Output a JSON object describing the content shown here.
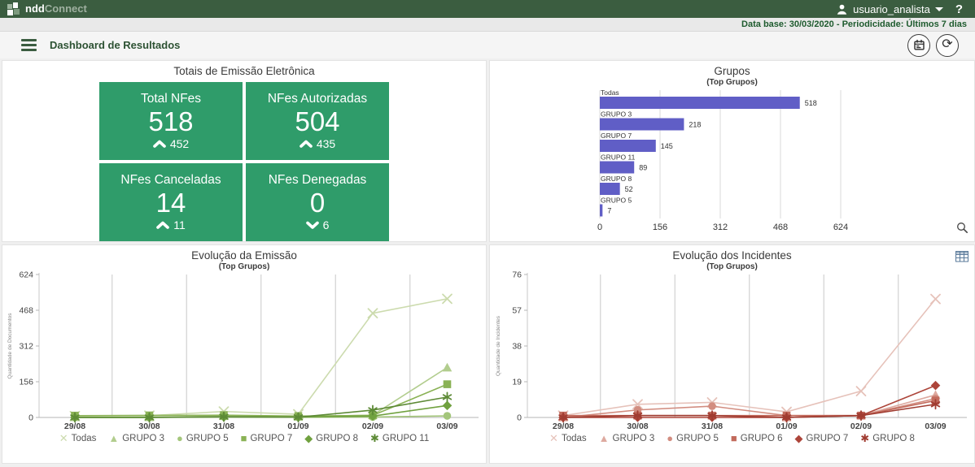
{
  "topbar": {
    "logo_bold": "ndd",
    "logo_light": "Connect",
    "username": "usuario_analista",
    "help_label": "?"
  },
  "infobar": {
    "text": "Data base: 30/03/2020 - Periodicidade: Últimos 7 dias"
  },
  "header": {
    "title": "Dashboard de Resultados"
  },
  "icons": {
    "menu": "hamburger",
    "user": "person-silhouette",
    "dropdown": "caret-down",
    "help": "question-mark",
    "calendar": "calendar",
    "refresh": "sync-circular-arrow",
    "zoom": "magnifier",
    "table": "grid-table",
    "trend_up": "chevron-up",
    "trend_down": "chevron-down"
  },
  "colors": {
    "topbar_green": "#3b5d40",
    "title_green": "#2d5233",
    "infobar_text": "#1e5b2e",
    "card_green": "#2f9c6a",
    "bar_purple": "#605ec6"
  },
  "totais": {
    "title": "Totais de Emissão Eletrônica",
    "cards": [
      {
        "label": "Total NFes",
        "value": "518",
        "trend": "up",
        "trend_value": "452"
      },
      {
        "label": "NFes Autorizadas",
        "value": "504",
        "trend": "up",
        "trend_value": "435"
      },
      {
        "label": "NFes Canceladas",
        "value": "14",
        "trend": "up",
        "trend_value": "11"
      },
      {
        "label": "NFes Denegadas",
        "value": "0",
        "trend": "down",
        "trend_value": "6"
      }
    ]
  },
  "chart_data": [
    {
      "id": "grupos",
      "type": "bar",
      "orientation": "horizontal",
      "title": "Grupos",
      "subtitle": "(Top Grupos)",
      "categories": [
        "Todas",
        "GRUPO 3",
        "GRUPO 7",
        "GRUPO 11",
        "GRUPO 8",
        "GRUPO 5"
      ],
      "values": [
        518,
        218,
        145,
        89,
        52,
        7
      ],
      "xticks": [
        0,
        156,
        312,
        468,
        624
      ],
      "xlim": [
        0,
        936
      ],
      "bar_color": "#605ec6",
      "grid": true,
      "value_labels": true
    },
    {
      "id": "emissao",
      "type": "line",
      "title": "Evolução da Emissão",
      "subtitle": "(Top Grupos)",
      "ylabel": "Quantidade de Documentos",
      "categories": [
        "29/08",
        "30/08",
        "31/08",
        "01/09",
        "02/09",
        "03/09"
      ],
      "yticks": [
        0,
        156,
        312,
        468,
        624
      ],
      "ylim": [
        0,
        624
      ],
      "grid": "vertical-midpoints",
      "legend_position": "bottom",
      "series": [
        {
          "name": "Todas",
          "marker": "x",
          "color": "#ccdbae",
          "values": [
            6,
            8,
            26,
            14,
            455,
            518
          ]
        },
        {
          "name": "GRUPO 3",
          "marker": "triangle",
          "color": "#b2cd8e",
          "values": [
            1,
            1,
            6,
            3,
            10,
            218
          ]
        },
        {
          "name": "GRUPO 5",
          "marker": "circle",
          "color": "#a4c67b",
          "values": [
            0,
            1,
            3,
            1,
            2,
            7
          ]
        },
        {
          "name": "GRUPO 7",
          "marker": "square",
          "color": "#8ab255",
          "values": [
            8,
            9,
            10,
            6,
            9,
            145
          ]
        },
        {
          "name": "GRUPO 8",
          "marker": "diamond",
          "color": "#70a13f",
          "values": [
            0,
            0,
            2,
            1,
            6,
            52
          ]
        },
        {
          "name": "GRUPO 11",
          "marker": "asterisk",
          "color": "#5d8a36",
          "values": [
            0,
            0,
            3,
            1,
            32,
            89
          ]
        }
      ]
    },
    {
      "id": "incidentes",
      "type": "line",
      "title": "Evolução dos Incidentes",
      "subtitle": "(Top Grupos)",
      "ylabel": "Quantidade de Incidentes",
      "categories": [
        "29/08",
        "30/08",
        "31/08",
        "01/09",
        "02/09",
        "03/09"
      ],
      "yticks": [
        0,
        19,
        38,
        57,
        76
      ],
      "ylim": [
        0,
        76
      ],
      "grid": "vertical-midpoints",
      "legend_position": "bottom",
      "series": [
        {
          "name": "Todas",
          "marker": "x",
          "color": "#e6c2ba",
          "values": [
            1,
            7,
            8,
            3,
            14,
            63
          ]
        },
        {
          "name": "GRUPO 3",
          "marker": "triangle",
          "color": "#deaaa0",
          "values": [
            0,
            1,
            1,
            0,
            1,
            12
          ]
        },
        {
          "name": "GRUPO 5",
          "marker": "circle",
          "color": "#d28d80",
          "values": [
            0,
            4,
            6,
            1,
            1,
            10
          ]
        },
        {
          "name": "GRUPO 6",
          "marker": "square",
          "color": "#c26a5c",
          "values": [
            1,
            1,
            1,
            1,
            1,
            9
          ]
        },
        {
          "name": "GRUPO 7",
          "marker": "diamond",
          "color": "#ad453a",
          "values": [
            0,
            0,
            0,
            0,
            1,
            17
          ]
        },
        {
          "name": "GRUPO 8",
          "marker": "asterisk",
          "color": "#a03c31",
          "values": [
            0,
            1,
            1,
            0,
            1,
            7
          ]
        }
      ]
    }
  ]
}
